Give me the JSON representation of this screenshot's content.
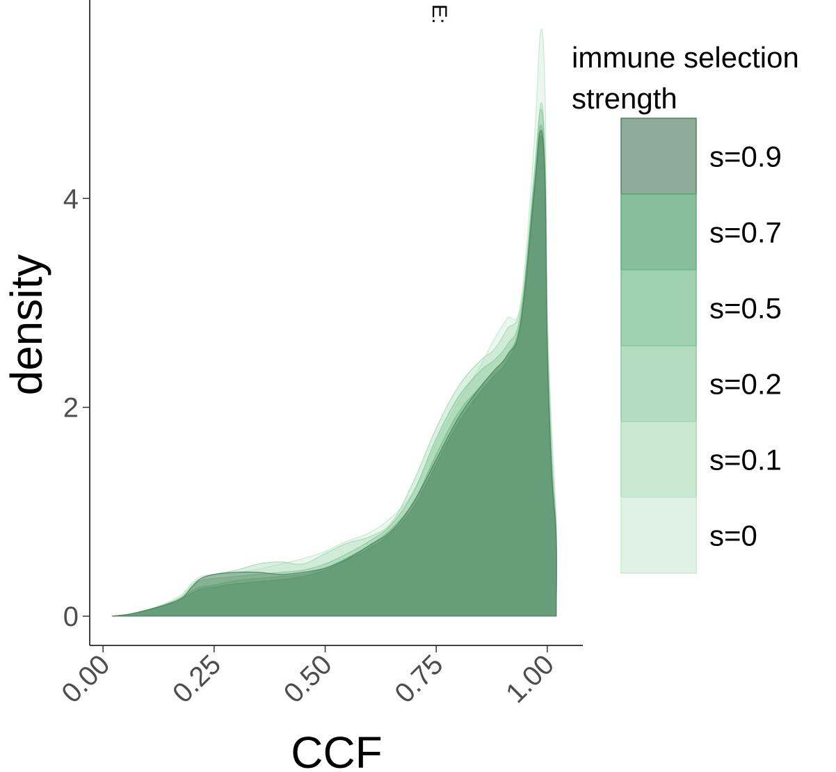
{
  "chart_data": {
    "type": "area",
    "title_fragment": "E:",
    "xlabel": "CCF",
    "ylabel": "density",
    "xlim": [
      -0.03,
      1.08
    ],
    "ylim": [
      -0.28,
      5.9
    ],
    "x_ticks": [
      0,
      0.25,
      0.5,
      0.75,
      1.0
    ],
    "x_tick_labels": [
      "0.00",
      "0.25",
      "0.50",
      "0.75",
      "1.00"
    ],
    "y_ticks": [
      0,
      2,
      4
    ],
    "y_tick_labels": [
      "0",
      "2",
      "4"
    ],
    "grid": false,
    "legend": {
      "title_lines": [
        "immune selection",
        "strength"
      ],
      "placement": "right"
    },
    "series": [
      {
        "name": "s=0",
        "color": "#c7e7cf",
        "opacity": 0.35,
        "x": [
          0.02,
          0.06,
          0.1,
          0.15,
          0.18,
          0.2,
          0.22,
          0.25,
          0.3,
          0.35,
          0.4,
          0.45,
          0.5,
          0.55,
          0.6,
          0.65,
          0.7,
          0.75,
          0.8,
          0.85,
          0.88,
          0.91,
          0.94,
          0.97,
          0.985,
          0.995,
          1.0,
          1.01,
          1.02,
          1.02
        ],
        "y": [
          0,
          0.02,
          0.06,
          0.14,
          0.22,
          0.32,
          0.38,
          0.4,
          0.42,
          0.45,
          0.5,
          0.55,
          0.62,
          0.72,
          0.8,
          0.95,
          1.2,
          1.65,
          2.05,
          2.4,
          2.65,
          2.85,
          3.0,
          4.5,
          5.6,
          5.0,
          3.0,
          1.8,
          0.9,
          0
        ]
      },
      {
        "name": "s=0.1",
        "color": "#a8d9b5",
        "opacity": 0.4,
        "x": [
          0.02,
          0.06,
          0.1,
          0.15,
          0.18,
          0.2,
          0.22,
          0.25,
          0.3,
          0.35,
          0.4,
          0.45,
          0.5,
          0.55,
          0.6,
          0.65,
          0.7,
          0.75,
          0.8,
          0.85,
          0.88,
          0.91,
          0.94,
          0.97,
          0.985,
          0.995,
          1.0,
          1.01,
          1.02,
          1.02
        ],
        "y": [
          0,
          0.02,
          0.06,
          0.13,
          0.2,
          0.3,
          0.36,
          0.4,
          0.44,
          0.5,
          0.52,
          0.5,
          0.6,
          0.7,
          0.76,
          0.9,
          1.3,
          1.8,
          2.2,
          2.45,
          2.55,
          2.75,
          2.95,
          4.0,
          4.9,
          4.4,
          2.8,
          1.6,
          0.8,
          0
        ]
      },
      {
        "name": "s=0.2",
        "color": "#8ccaa0",
        "opacity": 0.45,
        "x": [
          0.02,
          0.06,
          0.1,
          0.15,
          0.18,
          0.2,
          0.22,
          0.25,
          0.3,
          0.35,
          0.4,
          0.45,
          0.5,
          0.55,
          0.6,
          0.65,
          0.7,
          0.75,
          0.8,
          0.85,
          0.88,
          0.91,
          0.94,
          0.97,
          0.985,
          0.995,
          1.0,
          1.01,
          1.02,
          1.02
        ],
        "y": [
          0,
          0.02,
          0.06,
          0.13,
          0.19,
          0.28,
          0.34,
          0.36,
          0.38,
          0.4,
          0.42,
          0.44,
          0.5,
          0.6,
          0.72,
          0.88,
          1.2,
          1.7,
          2.1,
          2.35,
          2.45,
          2.6,
          2.9,
          4.2,
          4.85,
          4.3,
          2.7,
          1.5,
          0.85,
          0
        ]
      },
      {
        "name": "s=0.5",
        "color": "#78bd8e",
        "opacity": 0.5,
        "x": [
          0.02,
          0.06,
          0.1,
          0.15,
          0.18,
          0.2,
          0.22,
          0.25,
          0.3,
          0.35,
          0.4,
          0.45,
          0.5,
          0.55,
          0.6,
          0.65,
          0.7,
          0.75,
          0.8,
          0.85,
          0.88,
          0.91,
          0.94,
          0.97,
          0.985,
          0.995,
          1.0,
          1.01,
          1.02,
          1.02
        ],
        "y": [
          0,
          0.02,
          0.06,
          0.12,
          0.18,
          0.24,
          0.28,
          0.3,
          0.34,
          0.36,
          0.38,
          0.4,
          0.46,
          0.56,
          0.68,
          0.84,
          1.1,
          1.55,
          1.95,
          2.2,
          2.35,
          2.5,
          2.85,
          4.1,
          4.7,
          4.2,
          2.6,
          1.4,
          0.8,
          0
        ]
      },
      {
        "name": "s=0.7",
        "color": "#5faa7b",
        "opacity": 0.55,
        "x": [
          0.02,
          0.06,
          0.1,
          0.15,
          0.18,
          0.2,
          0.22,
          0.25,
          0.3,
          0.35,
          0.4,
          0.45,
          0.5,
          0.55,
          0.6,
          0.65,
          0.7,
          0.75,
          0.8,
          0.85,
          0.88,
          0.91,
          0.94,
          0.97,
          0.985,
          0.995,
          1.0,
          1.01,
          1.02,
          1.02
        ],
        "y": [
          0,
          0.02,
          0.06,
          0.12,
          0.17,
          0.22,
          0.26,
          0.28,
          0.31,
          0.33,
          0.35,
          0.38,
          0.44,
          0.54,
          0.65,
          0.8,
          1.05,
          1.45,
          1.85,
          2.15,
          2.3,
          2.45,
          2.8,
          4.0,
          4.6,
          4.1,
          2.5,
          1.35,
          0.75,
          0
        ]
      },
      {
        "name": "s=0.9",
        "color": "#527f61",
        "opacity": 0.45,
        "x": [
          0.02,
          0.06,
          0.1,
          0.15,
          0.18,
          0.2,
          0.22,
          0.25,
          0.3,
          0.35,
          0.4,
          0.45,
          0.5,
          0.55,
          0.6,
          0.65,
          0.7,
          0.75,
          0.8,
          0.85,
          0.88,
          0.91,
          0.94,
          0.97,
          0.985,
          0.995,
          1.0,
          1.01,
          1.02,
          1.02
        ],
        "y": [
          0,
          0.02,
          0.06,
          0.12,
          0.18,
          0.28,
          0.36,
          0.4,
          0.42,
          0.42,
          0.4,
          0.42,
          0.46,
          0.55,
          0.68,
          0.82,
          1.1,
          1.5,
          1.9,
          2.2,
          2.35,
          2.5,
          2.8,
          4.05,
          4.65,
          4.15,
          2.55,
          1.35,
          0.75,
          0
        ]
      }
    ]
  }
}
